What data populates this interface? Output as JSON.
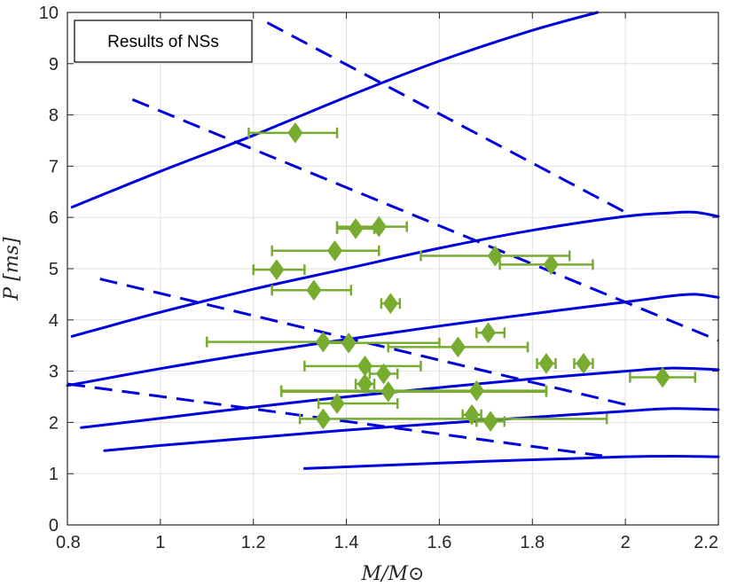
{
  "chart_data": {
    "type": "scatter",
    "legend": "Results of NSs",
    "xlabel": "M/M⊙",
    "ylabel": "P [ms]",
    "xlim": [
      0.8,
      2.2
    ],
    "ylim": [
      0,
      10
    ],
    "grid": true,
    "xticks": [
      "0.8",
      "1",
      "1.2",
      "1.4",
      "1.6",
      "1.8",
      "2",
      "2.2"
    ],
    "yticks": [
      "0",
      "1",
      "2",
      "3",
      "4",
      "5",
      "6",
      "7",
      "8",
      "9",
      "10"
    ],
    "colors": {
      "curves": "#0000dd",
      "points": "#77ac30",
      "grid": "#e0e0e0",
      "axes": "#262626"
    },
    "solid_curves": [
      {
        "name": "solid-1",
        "x": [
          0.81,
          1.0,
          1.2,
          1.4,
          1.6,
          1.8,
          1.94
        ],
        "y": [
          6.2,
          6.9,
          7.6,
          8.35,
          9.05,
          9.65,
          10.0
        ]
      },
      {
        "name": "solid-2",
        "x": [
          0.81,
          1.0,
          1.2,
          1.4,
          1.6,
          1.8,
          2.0,
          2.1,
          2.15,
          2.2
        ],
        "y": [
          3.68,
          4.15,
          4.6,
          5.0,
          5.4,
          5.75,
          6.02,
          6.09,
          6.1,
          6.02
        ]
      },
      {
        "name": "solid-3",
        "x": [
          0.8,
          1.0,
          1.2,
          1.4,
          1.6,
          1.8,
          2.0,
          2.1,
          2.15,
          2.2
        ],
        "y": [
          2.72,
          3.05,
          3.35,
          3.62,
          3.88,
          4.12,
          4.35,
          4.47,
          4.5,
          4.44
        ]
      },
      {
        "name": "solid-4",
        "x": [
          0.83,
          1.0,
          1.2,
          1.4,
          1.6,
          1.8,
          2.0,
          2.1,
          2.2
        ],
        "y": [
          1.9,
          2.08,
          2.3,
          2.5,
          2.68,
          2.85,
          3.0,
          3.06,
          3.03
        ]
      },
      {
        "name": "solid-5",
        "x": [
          0.88,
          1.0,
          1.2,
          1.4,
          1.6,
          1.8,
          2.0,
          2.1,
          2.2
        ],
        "y": [
          1.45,
          1.55,
          1.7,
          1.85,
          1.98,
          2.1,
          2.22,
          2.27,
          2.25
        ]
      },
      {
        "name": "solid-6",
        "x": [
          1.31,
          1.5,
          1.7,
          1.9,
          2.0,
          2.1,
          2.2
        ],
        "y": [
          1.1,
          1.17,
          1.24,
          1.3,
          1.33,
          1.34,
          1.33
        ]
      }
    ],
    "dashed_curves": [
      {
        "name": "dashed-1",
        "x": [
          1.23,
          2.0
        ],
        "y": [
          9.8,
          6.1
        ]
      },
      {
        "name": "dashed-2",
        "x": [
          0.94,
          2.2
        ],
        "y": [
          8.3,
          3.6
        ]
      },
      {
        "name": "dashed-3",
        "x": [
          0.87,
          2.0
        ],
        "y": [
          4.8,
          2.35
        ]
      },
      {
        "name": "dashed-4",
        "x": [
          0.8,
          1.95
        ],
        "y": [
          2.75,
          1.35
        ]
      }
    ],
    "points": [
      {
        "x": 1.29,
        "y": 7.65,
        "xerr": [
          0.1,
          0.09
        ]
      },
      {
        "x": 1.42,
        "y": 5.78,
        "xerr": [
          0.04,
          0.04
        ]
      },
      {
        "x": 1.47,
        "y": 5.82,
        "xerr": [
          0.09,
          0.06
        ]
      },
      {
        "x": 1.375,
        "y": 5.35,
        "xerr": [
          0.135,
          0.095
        ]
      },
      {
        "x": 1.25,
        "y": 4.98,
        "xerr": [
          0.05,
          0.06
        ]
      },
      {
        "x": 1.33,
        "y": 4.58,
        "xerr": [
          0.09,
          0.08
        ]
      },
      {
        "x": 1.495,
        "y": 4.32,
        "xerr": [
          0.02,
          0.02
        ]
      },
      {
        "x": 1.72,
        "y": 5.25,
        "xerr": [
          0.16,
          0.16
        ]
      },
      {
        "x": 1.84,
        "y": 5.08,
        "xerr": [
          0.11,
          0.09
        ]
      },
      {
        "x": 1.35,
        "y": 3.57,
        "xerr": [
          0.25,
          0.05
        ]
      },
      {
        "x": 1.405,
        "y": 3.55,
        "xerr": [
          0.055,
          0.195
        ]
      },
      {
        "x": 1.64,
        "y": 3.47,
        "xerr": [
          0.15,
          0.15
        ]
      },
      {
        "x": 1.705,
        "y": 3.75,
        "xerr": [
          0.025,
          0.035
        ]
      },
      {
        "x": 1.44,
        "y": 3.1,
        "xerr": [
          0.13,
          0.12
        ]
      },
      {
        "x": 1.48,
        "y": 2.95,
        "xerr": [
          0.03,
          0.03
        ]
      },
      {
        "x": 1.83,
        "y": 3.15,
        "xerr": [
          0.02,
          0.02
        ]
      },
      {
        "x": 1.91,
        "y": 3.15,
        "xerr": [
          0.02,
          0.02
        ]
      },
      {
        "x": 1.44,
        "y": 2.75,
        "xerr": [
          0.02,
          0.02
        ]
      },
      {
        "x": 1.49,
        "y": 2.6,
        "xerr": [
          0.23,
          0.34
        ]
      },
      {
        "x": 1.68,
        "y": 2.62,
        "xerr": [
          0.42,
          0.15
        ]
      },
      {
        "x": 2.08,
        "y": 2.88,
        "xerr": [
          0.07,
          0.07
        ]
      },
      {
        "x": 1.38,
        "y": 2.37,
        "xerr": [
          0.04,
          0.13
        ]
      },
      {
        "x": 1.67,
        "y": 2.15,
        "xerr": [
          0.02,
          0.02
        ]
      },
      {
        "x": 1.71,
        "y": 2.02,
        "xerr": [
          0.03,
          0.03
        ]
      },
      {
        "x": 1.35,
        "y": 2.07,
        "xerr": [
          0.05,
          0.61
        ]
      }
    ]
  }
}
